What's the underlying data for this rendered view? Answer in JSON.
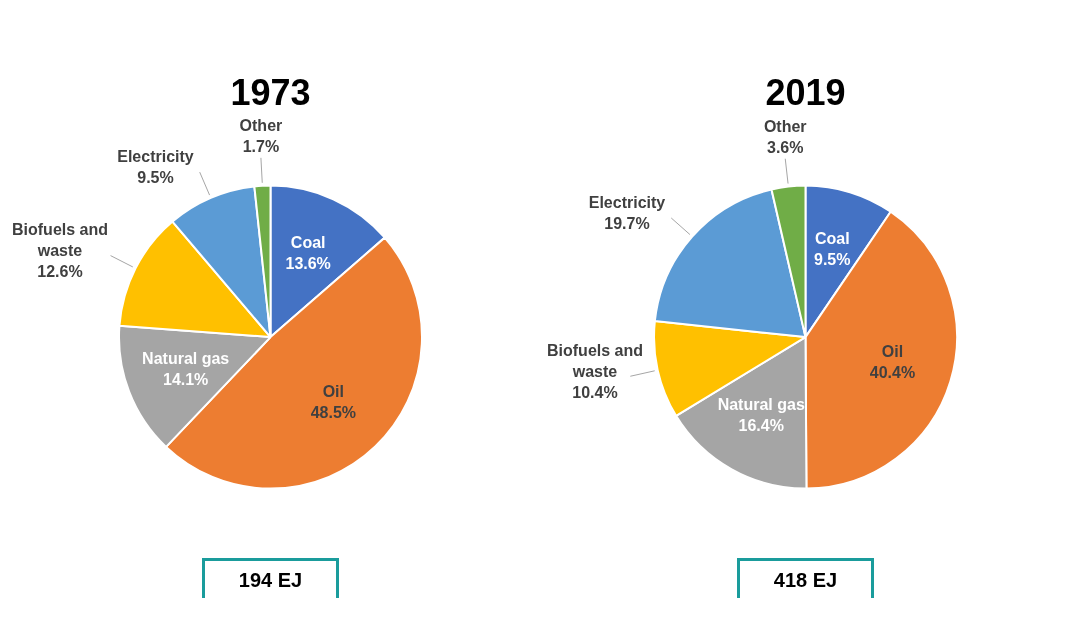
{
  "chart_data": [
    {
      "type": "pie",
      "title": "1973",
      "categories": [
        "Coal",
        "Oil",
        "Natural gas",
        "Biofuels and waste",
        "Electricity",
        "Other"
      ],
      "values": [
        13.6,
        48.5,
        14.1,
        12.6,
        9.5,
        1.7
      ],
      "value_labels": [
        "13.6%",
        "48.5%",
        "14.1%",
        "12.6%",
        "9.5%",
        "1.7%"
      ],
      "colors": [
        "#4472c4",
        "#ed7d31",
        "#a5a5a5",
        "#ffc000",
        "#5b9bd5",
        "#70ad47"
      ],
      "legend": false,
      "annotations": [
        "194 EJ"
      ]
    },
    {
      "type": "pie",
      "title": "2019",
      "categories": [
        "Coal",
        "Oil",
        "Natural gas",
        "Biofuels and waste",
        "Electricity",
        "Other"
      ],
      "values": [
        9.5,
        40.4,
        16.4,
        10.4,
        19.7,
        3.6
      ],
      "value_labels": [
        "9.5%",
        "40.4%",
        "16.4%",
        "10.4%",
        "19.7%",
        "3.6%"
      ],
      "colors": [
        "#4472c4",
        "#ed7d31",
        "#a5a5a5",
        "#ffc000",
        "#5b9bd5",
        "#70ad47"
      ],
      "legend": false,
      "annotations": [
        "418 EJ"
      ]
    }
  ]
}
